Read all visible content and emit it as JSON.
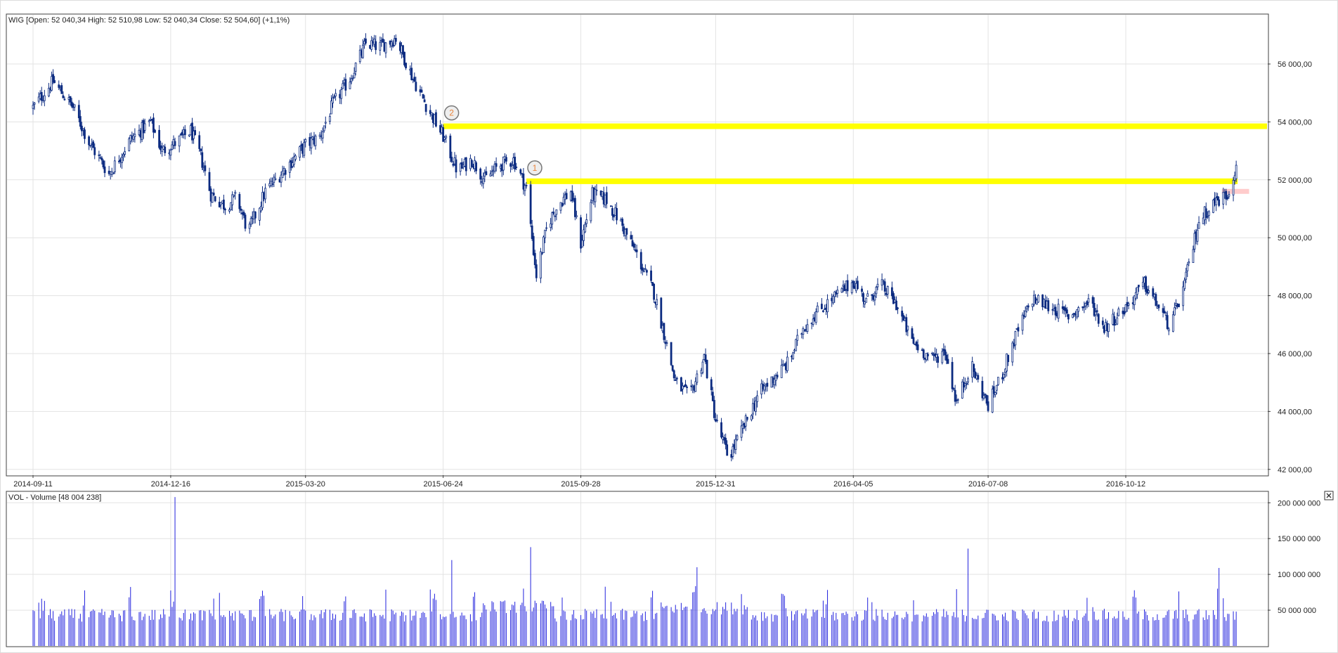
{
  "chart_data": {
    "type": "candlestick",
    "price_panel": {
      "legend": "WIG [Open: 52 040,34  High: 52 510,98  Low: 52 040,34  Close: 52 504,60] (+1,1%)",
      "ylim": [
        41800,
        57700
      ],
      "y_ticks": [
        {
          "value": 42000,
          "label": "42 000,00"
        },
        {
          "value": 44000,
          "label": "44 000,00"
        },
        {
          "value": 46000,
          "label": "46 000,00"
        },
        {
          "value": 48000,
          "label": "48 000,00"
        },
        {
          "value": 50000,
          "label": "50 000,00"
        },
        {
          "value": 52000,
          "label": "52 000,00"
        },
        {
          "value": 54000,
          "label": "54 000,00"
        },
        {
          "value": 56000,
          "label": "56 000,00"
        }
      ],
      "x_ticks": [
        "2014-09-11",
        "2014-12-16",
        "2015-03-20",
        "2015-06-24",
        "2015-09-28",
        "2015-12-31",
        "2016-04-05",
        "2016-07-08",
        "2016-10-12"
      ],
      "approx_closes": [
        [
          "2014-09-11",
          54500
        ],
        [
          "2014-09-25",
          55400
        ],
        [
          "2014-10-09",
          54500
        ],
        [
          "2014-10-20",
          53300
        ],
        [
          "2014-11-03",
          52200
        ],
        [
          "2014-11-18",
          53400
        ],
        [
          "2014-12-02",
          54000
        ],
        [
          "2014-12-10",
          53000
        ],
        [
          "2014-12-20",
          53300
        ],
        [
          "2014-12-30",
          53700
        ],
        [
          "2015-01-06",
          52800
        ],
        [
          "2015-01-13",
          51500
        ],
        [
          "2015-01-23",
          51100
        ],
        [
          "2015-01-31",
          51400
        ],
        [
          "2015-02-08",
          50200
        ],
        [
          "2015-02-20",
          51600
        ],
        [
          "2015-03-06",
          52400
        ],
        [
          "2015-03-20",
          53200
        ],
        [
          "2015-03-30",
          53500
        ],
        [
          "2015-04-08",
          54600
        ],
        [
          "2015-04-20",
          55500
        ],
        [
          "2015-05-01",
          56700
        ],
        [
          "2015-05-11",
          56600
        ],
        [
          "2015-05-22",
          56900
        ],
        [
          "2015-06-03",
          55500
        ],
        [
          "2015-06-13",
          54500
        ],
        [
          "2015-06-24",
          53500
        ],
        [
          "2015-07-04",
          52300
        ],
        [
          "2015-07-14",
          52700
        ],
        [
          "2015-07-23",
          52000
        ],
        [
          "2015-08-02",
          52500
        ],
        [
          "2015-08-12",
          52700
        ],
        [
          "2015-08-21",
          51700
        ],
        [
          "2015-08-28",
          48700
        ],
        [
          "2015-09-05",
          50500
        ],
        [
          "2015-09-13",
          51200
        ],
        [
          "2015-09-21",
          51600
        ],
        [
          "2015-09-28",
          49800
        ],
        [
          "2015-10-06",
          51500
        ],
        [
          "2015-10-16",
          51300
        ],
        [
          "2015-10-26",
          50500
        ],
        [
          "2015-11-06",
          49400
        ],
        [
          "2015-11-18",
          48100
        ],
        [
          "2015-11-26",
          46500
        ],
        [
          "2015-12-03",
          45000
        ],
        [
          "2015-12-13",
          44500
        ],
        [
          "2015-12-23",
          45900
        ],
        [
          "2015-12-31",
          43700
        ],
        [
          "2016-01-09",
          42400
        ],
        [
          "2016-01-18",
          43300
        ],
        [
          "2016-01-30",
          44600
        ],
        [
          "2016-02-10",
          45200
        ],
        [
          "2016-02-20",
          45700
        ],
        [
          "2016-03-01",
          46900
        ],
        [
          "2016-03-10",
          47400
        ],
        [
          "2016-03-22",
          47900
        ],
        [
          "2016-04-05",
          48500
        ],
        [
          "2016-04-14",
          47800
        ],
        [
          "2016-04-24",
          48400
        ],
        [
          "2016-05-05",
          47700
        ],
        [
          "2016-05-16",
          46400
        ],
        [
          "2016-05-30",
          45800
        ],
        [
          "2016-06-08",
          46100
        ],
        [
          "2016-06-16",
          44300
        ],
        [
          "2016-06-26",
          45600
        ],
        [
          "2016-07-08",
          44200
        ],
        [
          "2016-07-17",
          45200
        ],
        [
          "2016-07-28",
          46700
        ],
        [
          "2016-08-08",
          47900
        ],
        [
          "2016-08-21",
          47600
        ],
        [
          "2016-09-02",
          47300
        ],
        [
          "2016-09-17",
          47800
        ],
        [
          "2016-09-27",
          46900
        ],
        [
          "2016-10-12",
          47600
        ],
        [
          "2016-10-25",
          48400
        ],
        [
          "2016-11-04",
          47600
        ],
        [
          "2016-11-12",
          46900
        ],
        [
          "2016-11-22",
          48400
        ],
        [
          "2016-12-02",
          50600
        ],
        [
          "2016-12-12",
          51200
        ],
        [
          "2016-12-22",
          51500
        ],
        [
          "2016-12-28",
          52504.6
        ]
      ],
      "annotations": [
        {
          "label": "1",
          "price": 51950,
          "from": "2015-08-21",
          "to": "2016-12-29",
          "color": "#ffff00"
        },
        {
          "label": "2",
          "price": 53850,
          "from": "2015-06-24",
          "to": "2017-01-31",
          "color": "#ffff00"
        },
        {
          "label": "",
          "price": 51600,
          "from": "2016-12-18",
          "to": "2017-01-06",
          "color": "#ffcccc"
        }
      ]
    },
    "volume_panel": {
      "legend": "VOL - Volume [48 004 238]",
      "ylim": [
        0,
        215000000
      ],
      "y_ticks": [
        {
          "value": 50000000,
          "label": "50 000 000"
        },
        {
          "value": 100000000,
          "label": "100 000 000"
        },
        {
          "value": 150000000,
          "label": "150 000 000"
        },
        {
          "value": 200000000,
          "label": "200 000 000"
        }
      ],
      "spikes": [
        [
          "2014-12-19",
          208000000
        ],
        [
          "2015-06-30",
          120000000
        ],
        [
          "2015-08-24",
          138000000
        ],
        [
          "2015-12-18",
          110000000
        ],
        [
          "2016-04-10",
          103000000
        ],
        [
          "2016-06-24",
          136000000
        ],
        [
          "2016-12-16",
          109000000
        ]
      ]
    },
    "colors": {
      "candle": "#0b2a80",
      "volume": "#2222dd",
      "grid": "#e3e3e3",
      "highlight": "#ffff00",
      "highlight_red": "#ffcccc",
      "frame": "#404040"
    },
    "close_icon": "close-icon"
  }
}
